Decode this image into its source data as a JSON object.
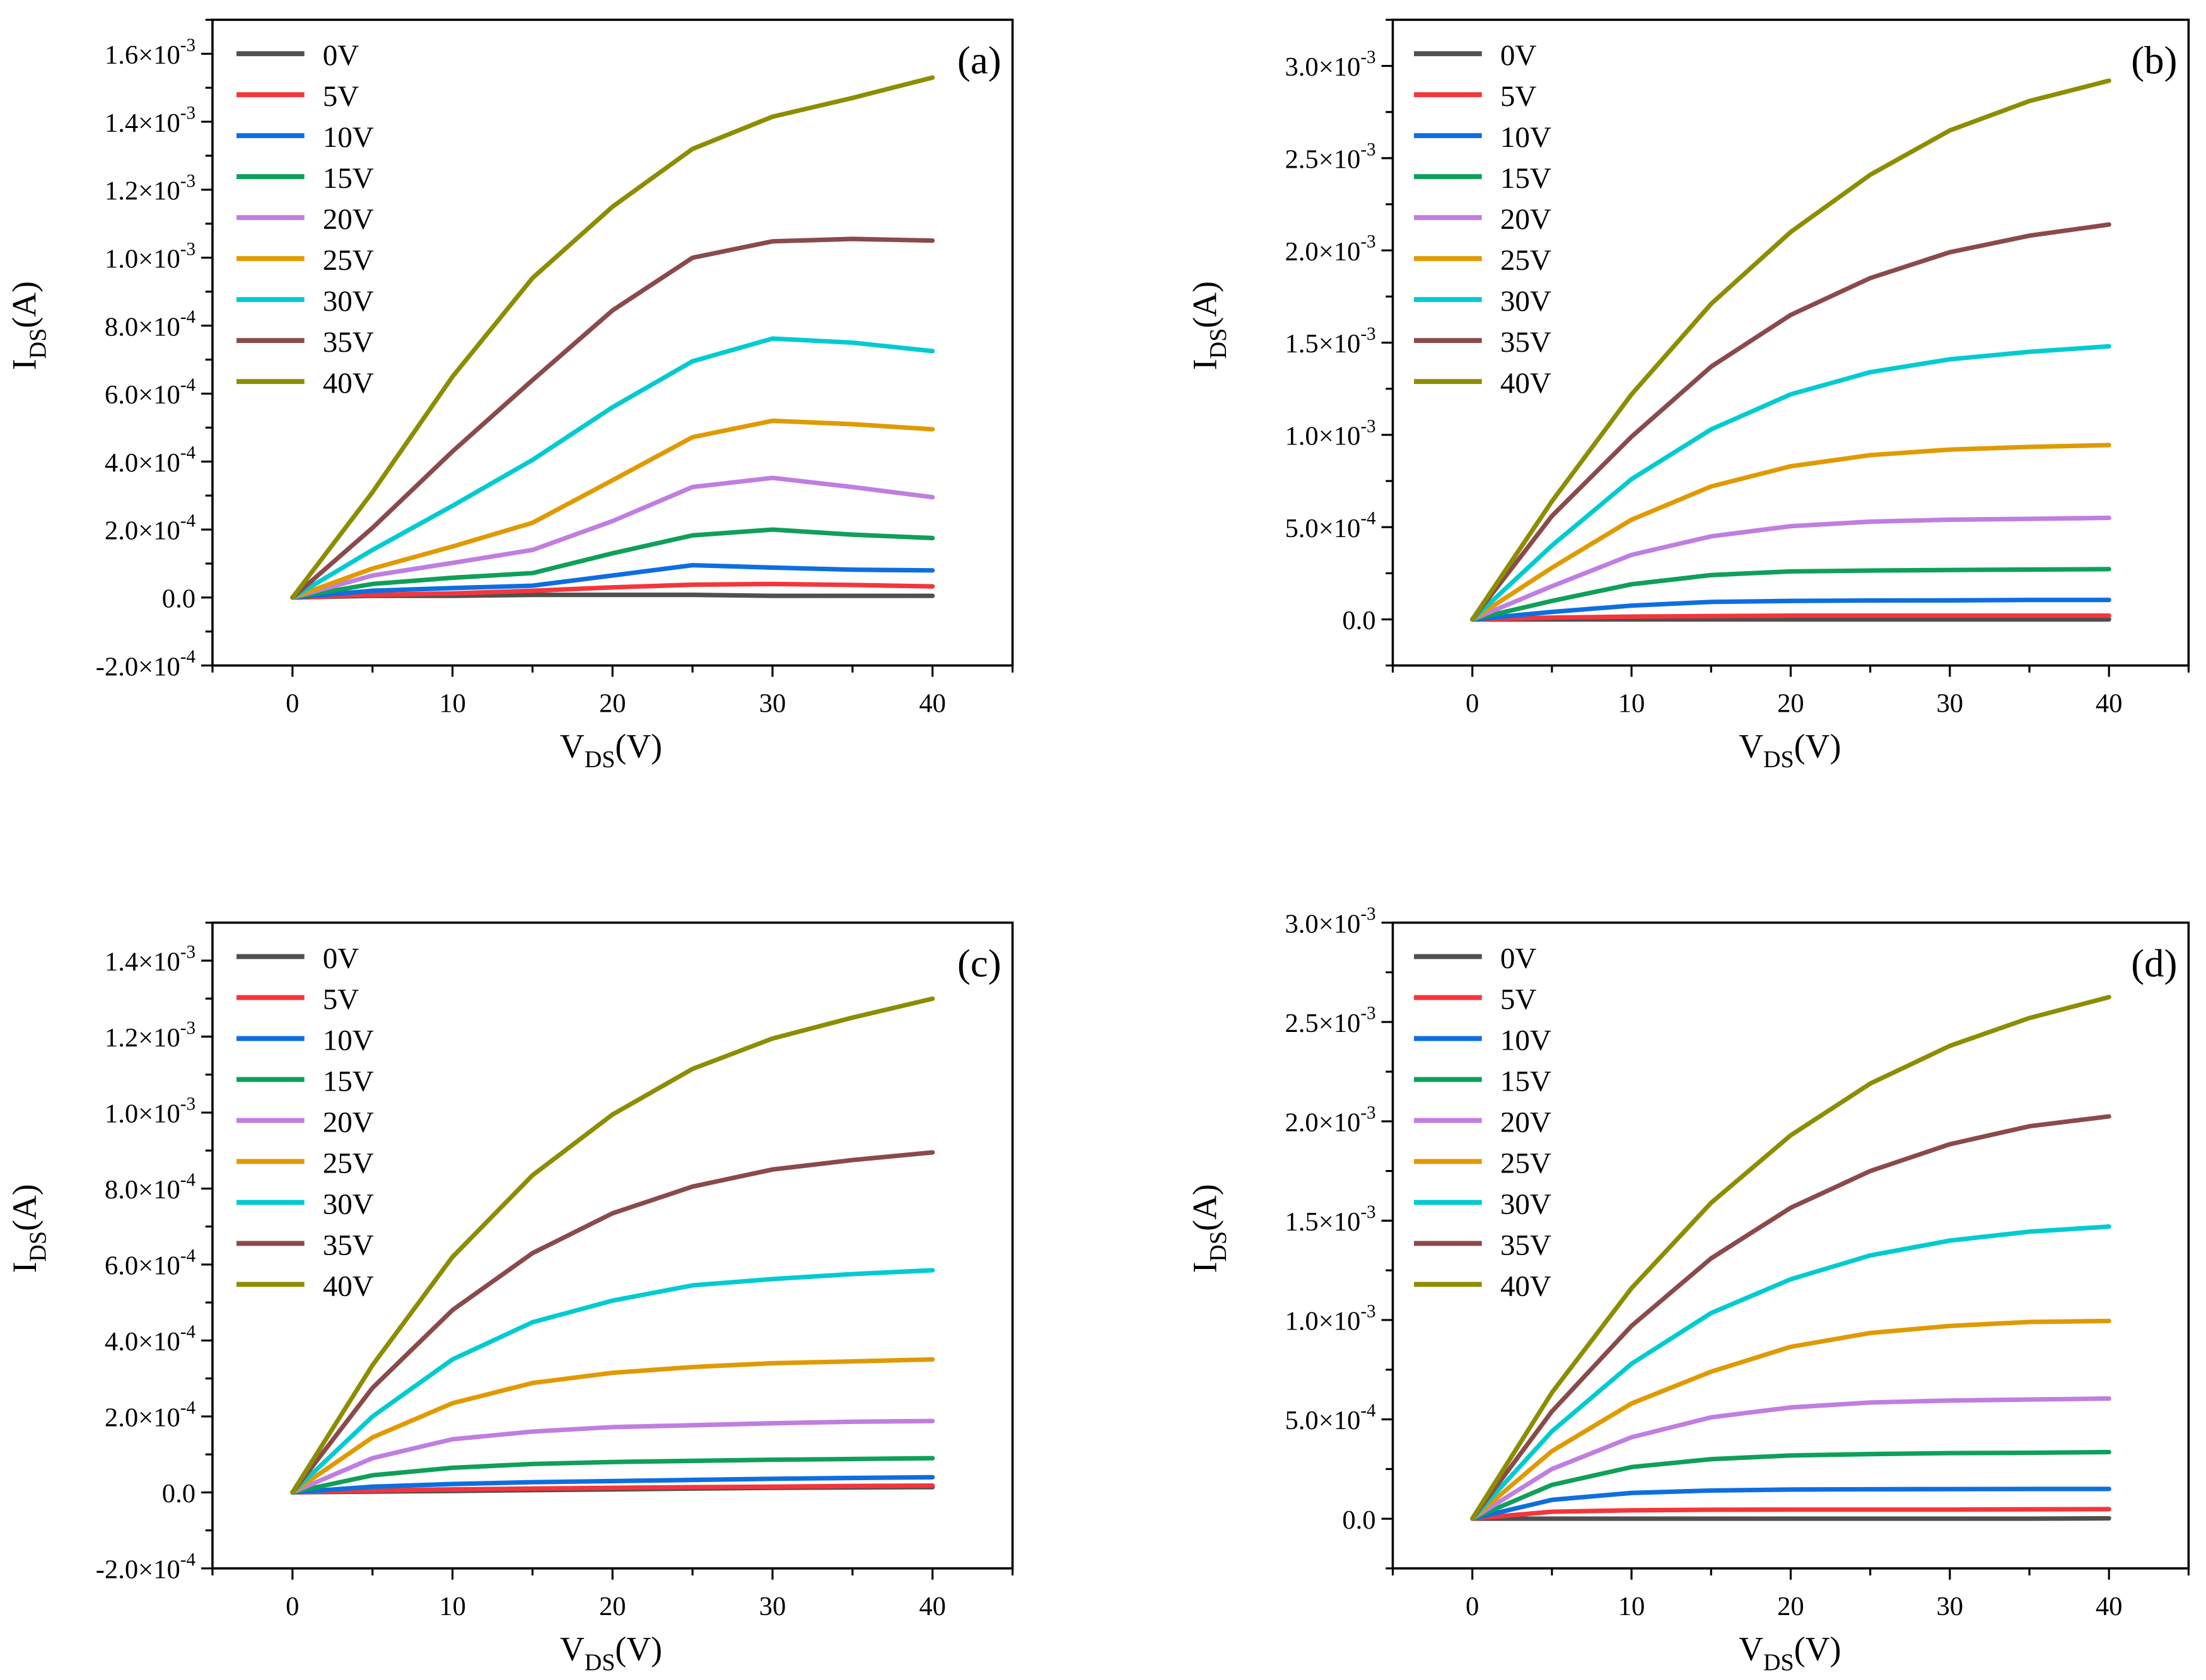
{
  "chart_data": [
    {
      "type": "line",
      "panel_label": "(a)",
      "xlabel": {
        "main": "V",
        "sub": "DS",
        "tail": "(V)"
      },
      "ylabel": {
        "main": "I",
        "sub": "DS",
        "tail": "(A)"
      },
      "x": [
        0,
        5,
        10,
        15,
        20,
        25,
        30,
        35,
        40
      ],
      "xlim": [
        -5,
        45
      ],
      "x_ticks": [
        0,
        10,
        20,
        30,
        40
      ],
      "x_tick_labels": [
        "0",
        "10",
        "20",
        "30",
        "40"
      ],
      "y_unit_scale": 0.0001,
      "ylim": [
        -2,
        17
      ],
      "y_ticks": [
        -2,
        0,
        2,
        4,
        6,
        8,
        10,
        12,
        14,
        16
      ],
      "y_tick_labels": [
        {
          "m": "-2.0×10",
          "e": "-4"
        },
        {
          "m": "0.0",
          "e": ""
        },
        {
          "m": "2.0×10",
          "e": "-4"
        },
        {
          "m": "4.0×10",
          "e": "-4"
        },
        {
          "m": "6.0×10",
          "e": "-4"
        },
        {
          "m": "8.0×10",
          "e": "-4"
        },
        {
          "m": "1.0×10",
          "e": "-3"
        },
        {
          "m": "1.2×10",
          "e": "-3"
        },
        {
          "m": "1.4×10",
          "e": "-3"
        },
        {
          "m": "1.6×10",
          "e": "-3"
        }
      ],
      "y_minor_step": 1,
      "legend_position": "top-left",
      "series": [
        {
          "name": "0V",
          "color": "#505050",
          "values": [
            0,
            0.05,
            0.05,
            0.08,
            0.08,
            0.08,
            0.05,
            0.05,
            0.05
          ]
        },
        {
          "name": "5V",
          "color": "#f4363c",
          "values": [
            0,
            0.08,
            0.12,
            0.2,
            0.3,
            0.38,
            0.4,
            0.37,
            0.33
          ]
        },
        {
          "name": "10V",
          "color": "#0d6ee0",
          "values": [
            0,
            0.2,
            0.28,
            0.35,
            0.65,
            0.95,
            0.88,
            0.82,
            0.8
          ]
        },
        {
          "name": "15V",
          "color": "#0f9f59",
          "values": [
            0,
            0.4,
            0.58,
            0.72,
            1.3,
            1.83,
            2.0,
            1.85,
            1.75
          ]
        },
        {
          "name": "20V",
          "color": "#c07ee0",
          "values": [
            0,
            0.65,
            1.02,
            1.4,
            2.25,
            3.25,
            3.52,
            3.25,
            2.95
          ]
        },
        {
          "name": "25V",
          "color": "#e09a00",
          "values": [
            0,
            0.85,
            1.5,
            2.2,
            3.45,
            4.72,
            5.2,
            5.1,
            4.95
          ]
        },
        {
          "name": "30V",
          "color": "#00cbd0",
          "values": [
            0,
            1.4,
            2.7,
            4.05,
            5.6,
            6.95,
            7.62,
            7.5,
            7.25
          ]
        },
        {
          "name": "35V",
          "color": "#8b4a4a",
          "values": [
            0,
            2.05,
            4.3,
            6.4,
            8.45,
            10.0,
            10.48,
            10.55,
            10.5
          ]
        },
        {
          "name": "40V",
          "color": "#8d8d00",
          "values": [
            0,
            3.1,
            6.5,
            9.4,
            11.5,
            13.2,
            14.15,
            14.7,
            15.3
          ]
        }
      ]
    },
    {
      "type": "line",
      "panel_label": "(b)",
      "xlabel": {
        "main": "V",
        "sub": "DS",
        "tail": "(V)"
      },
      "ylabel": {
        "main": "I",
        "sub": "DS",
        "tail": "(A)"
      },
      "x": [
        0,
        5,
        10,
        15,
        20,
        25,
        30,
        35,
        40
      ],
      "xlim": [
        -5,
        45
      ],
      "x_ticks": [
        0,
        10,
        20,
        30,
        40
      ],
      "x_tick_labels": [
        "0",
        "10",
        "20",
        "30",
        "40"
      ],
      "y_unit_scale": 0.0001,
      "ylim": [
        -2.5,
        32.5
      ],
      "y_ticks": [
        0,
        5,
        10,
        15,
        20,
        25,
        30
      ],
      "y_tick_labels": [
        {
          "m": "0.0",
          "e": ""
        },
        {
          "m": "5.0×10",
          "e": "-4"
        },
        {
          "m": "1.0×10",
          "e": "-3"
        },
        {
          "m": "1.5×10",
          "e": "-3"
        },
        {
          "m": "2.0×10",
          "e": "-3"
        },
        {
          "m": "2.5×10",
          "e": "-3"
        },
        {
          "m": "3.0×10",
          "e": "-3"
        }
      ],
      "y_minor_step": 2.5,
      "legend_position": "top-left",
      "series": [
        {
          "name": "0V",
          "color": "#505050",
          "values": [
            0,
            0,
            0,
            0,
            0,
            0,
            0,
            0,
            0
          ]
        },
        {
          "name": "5V",
          "color": "#f4363c",
          "values": [
            0,
            0.1,
            0.15,
            0.18,
            0.2,
            0.2,
            0.2,
            0.2,
            0.2
          ]
        },
        {
          "name": "10V",
          "color": "#0d6ee0",
          "values": [
            0,
            0.4,
            0.75,
            0.95,
            1.0,
            1.02,
            1.03,
            1.05,
            1.05
          ]
        },
        {
          "name": "15V",
          "color": "#0f9f59",
          "values": [
            0,
            1.0,
            1.9,
            2.4,
            2.6,
            2.65,
            2.68,
            2.7,
            2.72
          ]
        },
        {
          "name": "20V",
          "color": "#c07ee0",
          "values": [
            0,
            1.8,
            3.5,
            4.5,
            5.05,
            5.3,
            5.4,
            5.45,
            5.5
          ]
        },
        {
          "name": "25V",
          "color": "#e09a00",
          "values": [
            0,
            2.8,
            5.4,
            7.2,
            8.3,
            8.9,
            9.2,
            9.35,
            9.45
          ]
        },
        {
          "name": "30V",
          "color": "#00cbd0",
          "values": [
            0,
            4.0,
            7.6,
            10.3,
            12.2,
            13.4,
            14.1,
            14.5,
            14.8
          ]
        },
        {
          "name": "35V",
          "color": "#8b4a4a",
          "values": [
            0,
            5.6,
            9.9,
            13.7,
            16.5,
            18.5,
            19.9,
            20.8,
            21.4
          ]
        },
        {
          "name": "40V",
          "color": "#8d8d00",
          "values": [
            0,
            6.4,
            12.2,
            17.1,
            21.0,
            24.1,
            26.5,
            28.1,
            29.2
          ]
        }
      ]
    },
    {
      "type": "line",
      "panel_label": "(c)",
      "xlabel": {
        "main": "V",
        "sub": "DS",
        "tail": "(V)"
      },
      "ylabel": {
        "main": "I",
        "sub": "DS",
        "tail": "(A)"
      },
      "x": [
        0,
        5,
        10,
        15,
        20,
        25,
        30,
        35,
        40
      ],
      "xlim": [
        -5,
        45
      ],
      "x_ticks": [
        0,
        10,
        20,
        30,
        40
      ],
      "x_tick_labels": [
        "0",
        "10",
        "20",
        "30",
        "40"
      ],
      "y_unit_scale": 0.0001,
      "ylim": [
        -2,
        15
      ],
      "y_ticks": [
        -2,
        0,
        2,
        4,
        6,
        8,
        10,
        12,
        14
      ],
      "y_tick_labels": [
        {
          "m": "-2.0×10",
          "e": "-4"
        },
        {
          "m": "0.0",
          "e": ""
        },
        {
          "m": "2.0×10",
          "e": "-4"
        },
        {
          "m": "4.0×10",
          "e": "-4"
        },
        {
          "m": "6.0×10",
          "e": "-4"
        },
        {
          "m": "8.0×10",
          "e": "-4"
        },
        {
          "m": "1.0×10",
          "e": "-3"
        },
        {
          "m": "1.2×10",
          "e": "-3"
        },
        {
          "m": "1.4×10",
          "e": "-3"
        }
      ],
      "y_minor_step": 1,
      "legend_position": "top-left",
      "series": [
        {
          "name": "0V",
          "color": "#505050",
          "values": [
            0,
            0.02,
            0.04,
            0.06,
            0.08,
            0.1,
            0.12,
            0.13,
            0.14
          ]
        },
        {
          "name": "5V",
          "color": "#f4363c",
          "values": [
            0,
            0.05,
            0.08,
            0.1,
            0.12,
            0.14,
            0.15,
            0.17,
            0.18
          ]
        },
        {
          "name": "10V",
          "color": "#0d6ee0",
          "values": [
            0,
            0.15,
            0.22,
            0.27,
            0.3,
            0.33,
            0.36,
            0.38,
            0.4
          ]
        },
        {
          "name": "15V",
          "color": "#0f9f59",
          "values": [
            0,
            0.45,
            0.65,
            0.75,
            0.8,
            0.83,
            0.86,
            0.88,
            0.9
          ]
        },
        {
          "name": "20V",
          "color": "#c07ee0",
          "values": [
            0,
            0.9,
            1.4,
            1.6,
            1.72,
            1.77,
            1.82,
            1.86,
            1.88
          ]
        },
        {
          "name": "25V",
          "color": "#e09a00",
          "values": [
            0,
            1.45,
            2.35,
            2.88,
            3.15,
            3.3,
            3.4,
            3.45,
            3.5
          ]
        },
        {
          "name": "30V",
          "color": "#00cbd0",
          "values": [
            0,
            2.0,
            3.5,
            4.48,
            5.05,
            5.45,
            5.62,
            5.75,
            5.85
          ]
        },
        {
          "name": "35V",
          "color": "#8b4a4a",
          "values": [
            0,
            2.75,
            4.8,
            6.3,
            7.35,
            8.05,
            8.5,
            8.75,
            8.95
          ]
        },
        {
          "name": "40V",
          "color": "#8d8d00",
          "values": [
            0,
            3.35,
            6.2,
            8.35,
            9.95,
            11.15,
            11.95,
            12.5,
            13.0
          ]
        }
      ]
    },
    {
      "type": "line",
      "panel_label": "(d)",
      "xlabel": {
        "main": "V",
        "sub": "DS",
        "tail": "(V)"
      },
      "ylabel": {
        "main": "I",
        "sub": "DS",
        "tail": "(A)"
      },
      "x": [
        0,
        5,
        10,
        15,
        20,
        25,
        30,
        35,
        40
      ],
      "xlim": [
        -5,
        45
      ],
      "x_ticks": [
        0,
        10,
        20,
        30,
        40
      ],
      "x_tick_labels": [
        "0",
        "10",
        "20",
        "30",
        "40"
      ],
      "y_unit_scale": 0.0001,
      "ylim": [
        -2.5,
        30
      ],
      "y_ticks": [
        0,
        5,
        10,
        15,
        20,
        25,
        30
      ],
      "y_tick_labels": [
        {
          "m": "0.0",
          "e": ""
        },
        {
          "m": "5.0×10",
          "e": "-4"
        },
        {
          "m": "1.0×10",
          "e": "-3"
        },
        {
          "m": "1.5×10",
          "e": "-3"
        },
        {
          "m": "2.0×10",
          "e": "-3"
        },
        {
          "m": "2.5×10",
          "e": "-3"
        },
        {
          "m": "3.0×10",
          "e": "-3"
        }
      ],
      "y_minor_step": 2.5,
      "legend_position": "top-left",
      "series": [
        {
          "name": "0V",
          "color": "#505050",
          "values": [
            0,
            0,
            0,
            0,
            0,
            0,
            0,
            0,
            0.02
          ]
        },
        {
          "name": "5V",
          "color": "#f4363c",
          "values": [
            0,
            0.35,
            0.42,
            0.45,
            0.46,
            0.46,
            0.46,
            0.47,
            0.48
          ]
        },
        {
          "name": "10V",
          "color": "#0d6ee0",
          "values": [
            0,
            0.95,
            1.3,
            1.42,
            1.47,
            1.48,
            1.49,
            1.5,
            1.5
          ]
        },
        {
          "name": "15V",
          "color": "#0f9f59",
          "values": [
            0,
            1.7,
            2.6,
            3.0,
            3.18,
            3.25,
            3.3,
            3.32,
            3.35
          ]
        },
        {
          "name": "20V",
          "color": "#c07ee0",
          "values": [
            0,
            2.5,
            4.1,
            5.1,
            5.6,
            5.85,
            5.95,
            6.0,
            6.05
          ]
        },
        {
          "name": "25V",
          "color": "#e09a00",
          "values": [
            0,
            3.4,
            5.8,
            7.4,
            8.65,
            9.35,
            9.7,
            9.9,
            9.95
          ]
        },
        {
          "name": "30V",
          "color": "#00cbd0",
          "values": [
            0,
            4.4,
            7.8,
            10.35,
            12.05,
            13.25,
            14.0,
            14.45,
            14.7
          ]
        },
        {
          "name": "35V",
          "color": "#8b4a4a",
          "values": [
            0,
            5.4,
            9.7,
            13.1,
            15.65,
            17.5,
            18.85,
            19.75,
            20.25
          ]
        },
        {
          "name": "40V",
          "color": "#8d8d00",
          "values": [
            0,
            6.35,
            11.6,
            15.9,
            19.3,
            21.9,
            23.8,
            25.2,
            26.25
          ]
        }
      ]
    }
  ]
}
